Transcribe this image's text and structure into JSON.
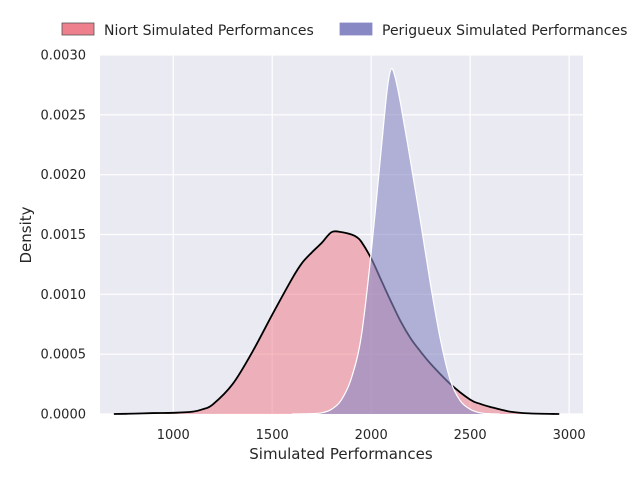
{
  "chart_data": {
    "type": "area",
    "xlabel": "Simulated Performances",
    "ylabel": "Density",
    "xlim": [
      630,
      3070
    ],
    "ylim": [
      0,
      0.003
    ],
    "xticks": [
      1000,
      1500,
      2000,
      2500,
      3000
    ],
    "xtick_labels": [
      "1000",
      "1500",
      "2000",
      "2500",
      "3000"
    ],
    "yticks": [
      0,
      0.0005,
      0.001,
      0.0015,
      0.002,
      0.0025,
      0.003
    ],
    "ytick_labels": [
      "0.0000",
      "0.0005",
      "0.0010",
      "0.0015",
      "0.0020",
      "0.0025",
      "0.0030"
    ],
    "grid": true,
    "legend_position": "top",
    "series": [
      {
        "name": "Niort Simulated Performances",
        "fill": "#ee7f8c",
        "stroke": "#000000",
        "x": [
          700,
          800,
          900,
          1000,
          1100,
          1150,
          1200,
          1300,
          1400,
          1500,
          1600,
          1650,
          1700,
          1750,
          1800,
          1850,
          1900,
          1925,
          1950,
          2000,
          2050,
          2100,
          2150,
          2200,
          2250,
          2300,
          2400,
          2500,
          2550,
          2600,
          2700,
          2800,
          2950
        ],
        "values": [
          0,
          3e-06,
          8e-06,
          1e-05,
          2e-05,
          4e-05,
          8e-05,
          0.00025,
          0.00052,
          0.00083,
          0.00113,
          0.00126,
          0.00135,
          0.00143,
          0.00152,
          0.00152,
          0.0015,
          0.00148,
          0.00144,
          0.0013,
          0.00112,
          0.00094,
          0.00077,
          0.00063,
          0.00052,
          0.00042,
          0.00025,
          0.00012,
          8.5e-05,
          6e-05,
          2e-05,
          5e-06,
          0
        ]
      },
      {
        "name": "Perigueux Simulated Performances",
        "fill": "#8888c4",
        "stroke": "#ffffff",
        "x": [
          1600,
          1700,
          1750,
          1800,
          1850,
          1900,
          1950,
          2000,
          2050,
          2080,
          2100,
          2120,
          2150,
          2200,
          2250,
          2300,
          2350,
          2400,
          2450,
          2500,
          2550,
          2600,
          2650
        ],
        "values": [
          0,
          3e-06,
          1e-05,
          4e-05,
          0.00012,
          0.0003,
          0.00065,
          0.00135,
          0.0022,
          0.0027,
          0.00288,
          0.00282,
          0.00258,
          0.0021,
          0.0016,
          0.00108,
          0.00062,
          0.00028,
          0.00011,
          4e-05,
          1e-05,
          2e-06,
          0
        ]
      }
    ]
  }
}
